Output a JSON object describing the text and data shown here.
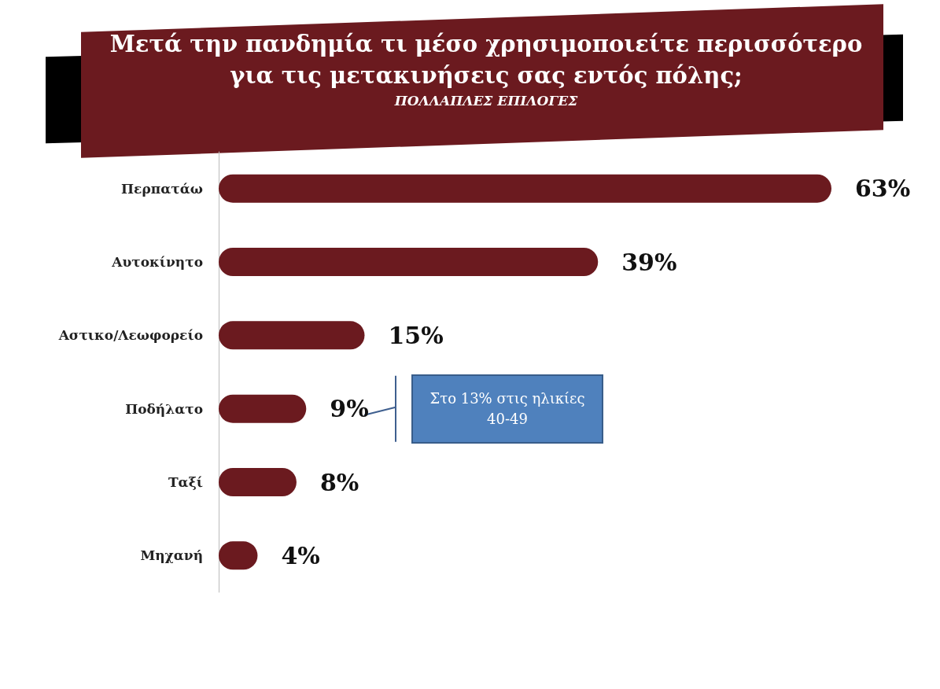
{
  "chart_data": {
    "type": "bar",
    "orientation": "horizontal",
    "title": "Μετά την πανδημία τι μέσο χρησιμοποιείτε περισσότερο για τις μετακινήσεις σας εντός πόλης;",
    "subtitle": "ΠΟΛΛΑΠΛΕΣ ΕΠΙΛΟΓΕΣ",
    "categories": [
      "Περπατάω",
      "Αυτοκίνητο",
      "Αστικο/Λεωφορείο",
      "Ποδήλατο",
      "Ταξί",
      "Μηχανή"
    ],
    "values": [
      63,
      39,
      15,
      9,
      8,
      4
    ],
    "value_labels": [
      "63%",
      "39%",
      "15%",
      "9%",
      "8%",
      "4%"
    ],
    "color": "#6b1a1f",
    "annotations": [
      "Στο 13% στις ηλικίες 40-49"
    ]
  }
}
